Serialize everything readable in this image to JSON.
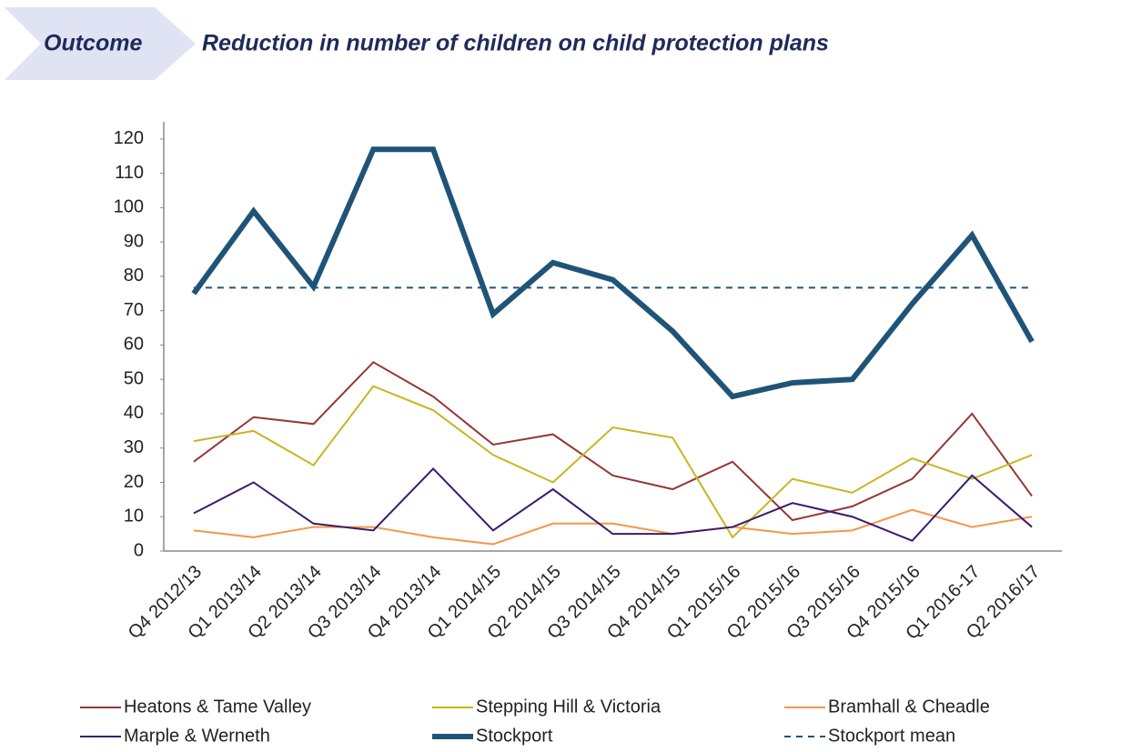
{
  "chart_data": {
    "type": "line",
    "section": "Outcome",
    "title": "Reduction in number of children on child protection plans",
    "categories": [
      "Q4 2012/13",
      "Q1 2013/14",
      "Q2 2013/14",
      "Q3 2013/14",
      "Q4 2013/14",
      "Q1 2014/15",
      "Q2 2014/15",
      "Q3 2014/15",
      "Q4 2014/15",
      "Q1 2015/16",
      "Q2 2015/16",
      "Q3 2015/16",
      "Q4 2015/16",
      "Q1 2016-17",
      "Q2 2016/17"
    ],
    "series": [
      {
        "name": "Heatons & Tame Valley",
        "color": "#953735",
        "width": 2,
        "values": [
          26,
          39,
          37,
          55,
          45,
          31,
          34,
          22,
          18,
          26,
          9,
          13,
          21,
          40,
          16
        ]
      },
      {
        "name": "Stepping Hill & Victoria",
        "color": "#c9b521",
        "width": 2,
        "values": [
          32,
          35,
          25,
          48,
          41,
          28,
          20,
          36,
          33,
          4,
          21,
          17,
          27,
          21,
          28
        ]
      },
      {
        "name": "Bramhall & Cheadle",
        "color": "#f79646",
        "width": 2,
        "values": [
          6,
          4,
          7,
          7,
          4,
          2,
          8,
          8,
          5,
          7,
          5,
          6,
          12,
          7,
          10
        ]
      },
      {
        "name": "Marple & Werneth",
        "color": "#3b1a6b",
        "width": 2,
        "values": [
          11,
          20,
          8,
          6,
          24,
          6,
          18,
          5,
          5,
          7,
          14,
          10,
          3,
          22,
          7
        ]
      },
      {
        "name": "Stockport",
        "color": "#1f5478",
        "width": 6,
        "values": [
          75,
          99,
          77,
          117,
          117,
          69,
          84,
          79,
          64,
          45,
          49,
          50,
          72,
          92,
          61
        ]
      },
      {
        "name": "Stockport mean",
        "color": "#1f5478",
        "width": 2,
        "style": "dashed",
        "values": [
          76.7,
          76.7,
          76.7,
          76.7,
          76.7,
          76.7,
          76.7,
          76.7,
          76.7,
          76.7,
          76.7,
          76.7,
          76.7,
          76.7,
          76.7
        ]
      }
    ],
    "ylim": [
      0,
      125
    ],
    "yticks": [
      0,
      10,
      20,
      30,
      40,
      50,
      60,
      70,
      80,
      90,
      100,
      110,
      120
    ],
    "grid": false
  }
}
